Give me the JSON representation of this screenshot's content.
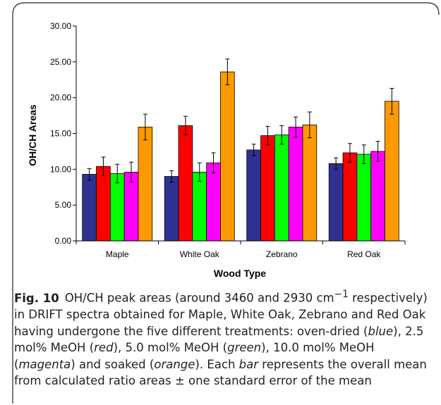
{
  "chart_data": {
    "type": "bar",
    "title": "",
    "xlabel": "Wood Type",
    "ylabel": "OH/CH Areas",
    "ylim": [
      0,
      30
    ],
    "yticks": [
      "0.00",
      "5.00",
      "10.00",
      "15.00",
      "20.00",
      "25.00",
      "30.00"
    ],
    "ytick_values": [
      0,
      5,
      10,
      15,
      20,
      25,
      30
    ],
    "grid": false,
    "legend": "none",
    "categories": [
      "Maple",
      "White Oak",
      "Zebrano",
      "Red Oak"
    ],
    "series": [
      {
        "color": "#2e3192",
        "values": [
          9.3,
          9.0,
          12.7,
          10.8
        ],
        "errors": [
          0.8,
          0.8,
          0.8,
          0.8
        ]
      },
      {
        "color": "#ff0000",
        "values": [
          10.4,
          16.1,
          14.7,
          12.3
        ],
        "errors": [
          1.3,
          1.3,
          1.3,
          1.3
        ]
      },
      {
        "color": "#00ff00",
        "values": [
          9.4,
          9.6,
          14.8,
          12.1
        ],
        "errors": [
          1.3,
          1.3,
          1.3,
          1.3
        ]
      },
      {
        "color": "#ff00ff",
        "values": [
          9.6,
          10.9,
          15.9,
          12.5
        ],
        "errors": [
          1.4,
          1.4,
          1.4,
          1.4
        ]
      },
      {
        "color": "#ff9900",
        "values": [
          15.9,
          23.6,
          16.2,
          19.5
        ],
        "errors": [
          1.8,
          1.8,
          1.8,
          1.8
        ]
      }
    ]
  },
  "caption": {
    "label": "Fig. 10",
    "t1": "OH/CH peak areas (around 3460 and 2930 cm",
    "sup": "−1",
    "t2": " respectively) in DRIFT spectra obtained for Maple, White Oak, Zebrano and Red Oak having undergone the five different treatments: oven-dried (",
    "w_blue": "blue",
    "t3": "), 2.5 mol% MeOH (",
    "w_red": "red",
    "t4": "), 5.0 mol% MeOH (",
    "w_green": "green",
    "t5": "), 10.0 mol% MeOH (",
    "w_magenta": "magenta",
    "t6": ") and soaked (",
    "w_orange": "orange",
    "t7": "). Each ",
    "w_bar": "bar",
    "t8": " represents the overall mean from calculated ratio areas ± one standard error of the mean"
  }
}
